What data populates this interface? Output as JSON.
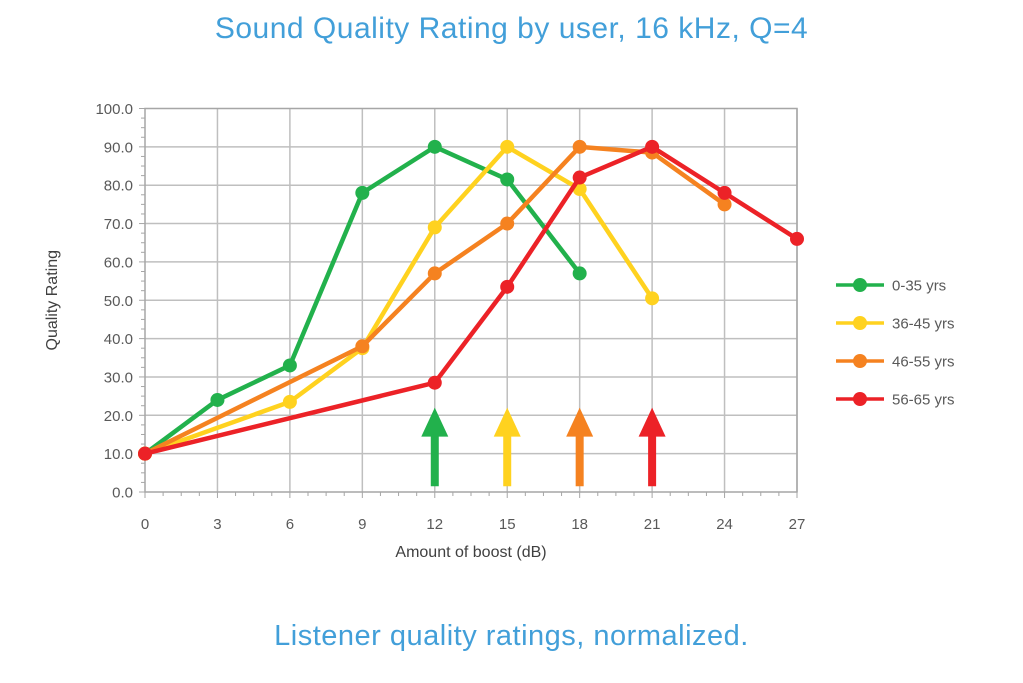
{
  "page": {
    "title": "Sound Quality Rating by user, 16 kHz, Q=4",
    "caption": "Listener quality ratings, normalized.",
    "title_color": "#429fd9"
  },
  "chart_data": {
    "type": "line",
    "title": "Sound Quality Rating by user, 16 kHz, Q=4",
    "xlabel": "Amount of boost (dB)",
    "ylabel": "Quality Rating",
    "xlim": [
      0,
      27
    ],
    "ylim": [
      0,
      100
    ],
    "x_ticks": [
      0,
      3,
      6,
      9,
      12,
      15,
      18,
      21,
      24,
      27
    ],
    "y_ticks": [
      0,
      10,
      20,
      30,
      40,
      50,
      60,
      70,
      80,
      90,
      100
    ],
    "y_tick_decimals": 1,
    "grid": true,
    "grid_color": "#bfbfbf",
    "legend_position": "right",
    "series": [
      {
        "name": "0-35 yrs",
        "color": "#22b14c",
        "points": [
          [
            0,
            10
          ],
          [
            3,
            24
          ],
          [
            6,
            33
          ],
          [
            9,
            78
          ],
          [
            12,
            90
          ],
          [
            15,
            81.5
          ],
          [
            18,
            57
          ]
        ]
      },
      {
        "name": "36-45 yrs",
        "color": "#ffd21f",
        "points": [
          [
            0,
            10
          ],
          [
            6,
            23.5
          ],
          [
            9,
            37.5
          ],
          [
            12,
            69
          ],
          [
            15,
            90
          ],
          [
            18,
            79
          ],
          [
            21,
            50.5
          ]
        ]
      },
      {
        "name": "46-55 yrs",
        "color": "#f58220",
        "points": [
          [
            0,
            10
          ],
          [
            9,
            38
          ],
          [
            12,
            57
          ],
          [
            15,
            70
          ],
          [
            18,
            90
          ],
          [
            21,
            88.5
          ],
          [
            24,
            75
          ]
        ]
      },
      {
        "name": "56-65 yrs",
        "color": "#ec2227",
        "points": [
          [
            0,
            10
          ],
          [
            12,
            28.5
          ],
          [
            15,
            53.5
          ],
          [
            18,
            82
          ],
          [
            21,
            90
          ],
          [
            24,
            78
          ],
          [
            27,
            66
          ]
        ]
      }
    ],
    "arrows": [
      {
        "x": 12,
        "color": "#22b14c",
        "y_from": 1.5,
        "y_to": 22
      },
      {
        "x": 15,
        "color": "#ffd21f",
        "y_from": 1.5,
        "y_to": 22
      },
      {
        "x": 18,
        "color": "#f58220",
        "y_from": 1.5,
        "y_to": 22
      },
      {
        "x": 21,
        "color": "#ec2227",
        "y_from": 1.5,
        "y_to": 22
      }
    ]
  }
}
